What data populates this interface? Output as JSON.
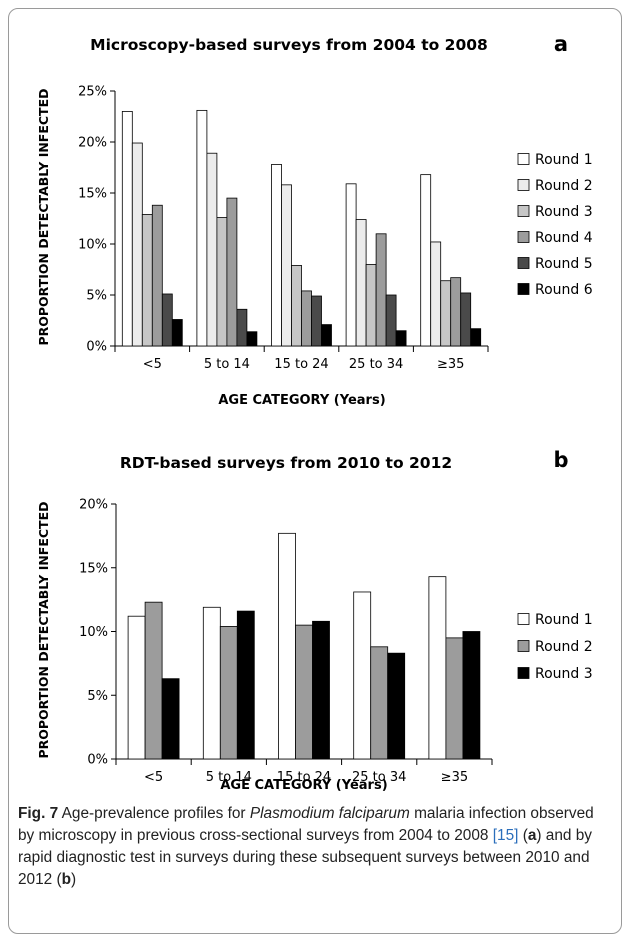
{
  "charts": [
    {
      "panel_letter": "a",
      "legend_labels": [
        "Round 1",
        "Round 2",
        "Round 3",
        "Round 4",
        "Round 5",
        "Round 6"
      ]
    },
    {
      "panel_letter": "b",
      "legend_labels": [
        "Round 1",
        "Round 2",
        "Round 3"
      ]
    }
  ],
  "chart_data": [
    {
      "type": "bar",
      "title": "Microscopy-based surveys from 2004 to 2008",
      "xlabel": "AGE CATEGORY (Years)",
      "ylabel": "PROPORTION DETECTABLY INFECTED",
      "categories": [
        "<5",
        "5 to 14",
        "15 to 24",
        "25 to 34",
        "≥35"
      ],
      "y_ticks": [
        "0%",
        "5%",
        "10%",
        "15%",
        "20%",
        "25%"
      ],
      "ylim": [
        0,
        25
      ],
      "grid": false,
      "legend": "right",
      "series": [
        {
          "name": "Round 1",
          "color": "#ffffff",
          "values": [
            23.0,
            23.1,
            17.8,
            15.9,
            16.8
          ]
        },
        {
          "name": "Round 2",
          "color": "#ececec",
          "values": [
            19.9,
            18.9,
            15.8,
            12.4,
            10.2
          ]
        },
        {
          "name": "Round 3",
          "color": "#c6c6c6",
          "values": [
            12.9,
            12.6,
            7.9,
            8.0,
            6.4
          ]
        },
        {
          "name": "Round 4",
          "color": "#9c9c9c",
          "values": [
            13.8,
            14.5,
            5.4,
            11.0,
            6.7
          ]
        },
        {
          "name": "Round 5",
          "color": "#4a4a4a",
          "values": [
            5.1,
            3.6,
            4.9,
            5.0,
            5.2
          ]
        },
        {
          "name": "Round 6",
          "color": "#000000",
          "values": [
            2.6,
            1.4,
            2.1,
            1.5,
            1.7
          ]
        }
      ]
    },
    {
      "type": "bar",
      "title": "RDT-based surveys from 2010 to 2012",
      "xlabel": "AGE CATEGORY (Years)",
      "ylabel": "PROPORTION DETECTABLY INFECTED",
      "categories": [
        "<5",
        "5 to 14",
        "15 to 24",
        "25 to 34",
        "≥35"
      ],
      "y_ticks": [
        "0%",
        "5%",
        "10%",
        "15%",
        "20%"
      ],
      "ylim": [
        0,
        20
      ],
      "grid": false,
      "legend": "right",
      "series": [
        {
          "name": "Round 1",
          "color": "#ffffff",
          "values": [
            11.2,
            11.9,
            17.7,
            13.1,
            14.3
          ]
        },
        {
          "name": "Round 2",
          "color": "#9c9c9c",
          "values": [
            12.3,
            10.4,
            10.5,
            8.8,
            9.5
          ]
        },
        {
          "name": "Round 3",
          "color": "#000000",
          "values": [
            6.3,
            11.6,
            10.8,
            8.3,
            10.0
          ]
        }
      ]
    }
  ],
  "caption": {
    "fig_label": "Fig. 7",
    "text_1": " Age-prevalence profiles for ",
    "species": "Plasmodium falciparum",
    "text_2": " malaria infection observed by microscopy in previous cross-sectional surveys from 2004 to 2008 ",
    "ref": "[15]",
    "text_3": " (",
    "letter_a": "a",
    "text_4": ") and by rapid diagnostic test in surveys during these subsequent surveys between 2010 and 2012 (",
    "letter_b": "b",
    "text_5": ")"
  }
}
